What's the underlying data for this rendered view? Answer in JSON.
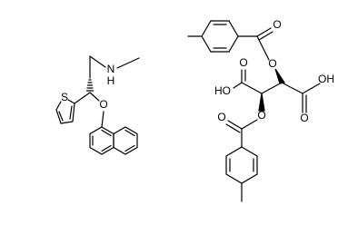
{
  "atoms": [
    "N",
    "H",
    "S",
    "O",
    "O",
    "O",
    "HO",
    "O",
    "OH",
    "O",
    "O",
    "O"
  ]
}
